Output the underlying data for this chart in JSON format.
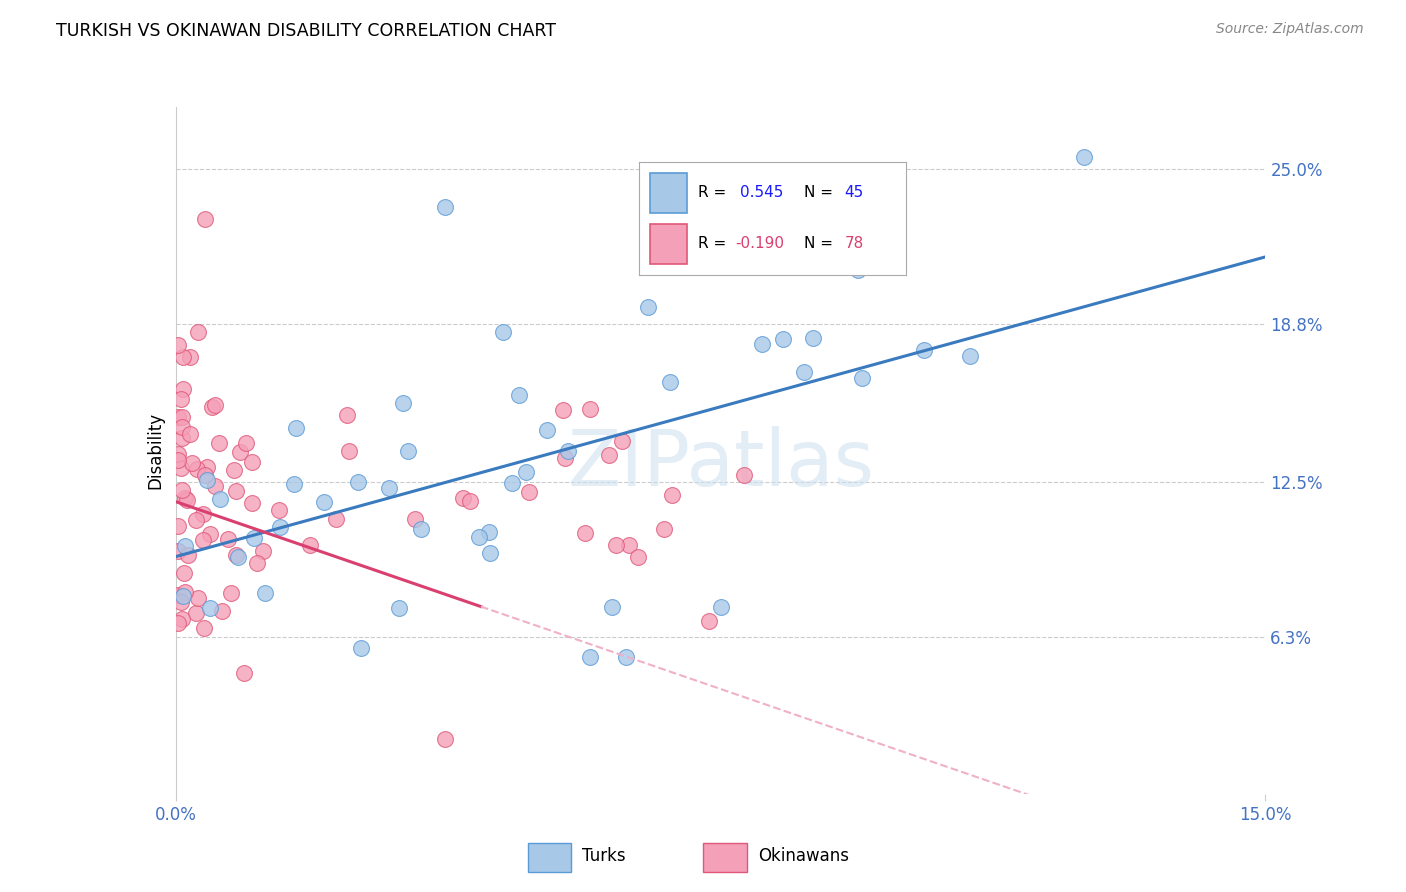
{
  "title": "TURKISH VS OKINAWAN DISABILITY CORRELATION CHART",
  "source": "Source: ZipAtlas.com",
  "ylabel": "Disability",
  "ytick_labels": [
    "25.0%",
    "18.8%",
    "12.5%",
    "6.3%"
  ],
  "ytick_values": [
    0.25,
    0.188,
    0.125,
    0.063
  ],
  "xmin": 0.0,
  "xmax": 0.15,
  "ymin": 0.0,
  "ymax": 0.275,
  "turks_color": "#a8c8e8",
  "turks_edge_color": "#5b9bd5",
  "okinawans_color": "#f4a0b8",
  "okinawans_edge_color": "#e05878",
  "trend_turks_color": "#3a7bbf",
  "trend_okinawans_solid_color": "#d94070",
  "trend_okinawans_dashed_color": "#f0b0c8",
  "R_turks": 0.545,
  "N_turks": 45,
  "R_okinawans": -0.19,
  "N_okinawans": 78,
  "watermark": "ZIPatlas",
  "legend_text_color": "#1a1aff",
  "legend_r_okin_color": "#d94070",
  "axis_tick_color": "#4472c4",
  "grid_color": "#cccccc"
}
